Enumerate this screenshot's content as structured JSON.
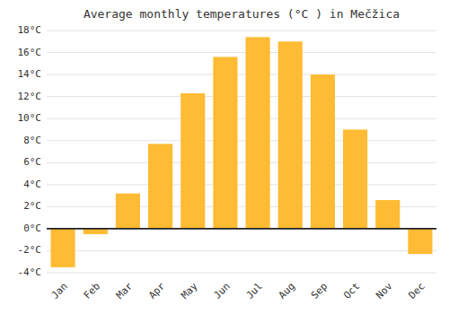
{
  "chart_data": {
    "type": "bar",
    "title": "Average monthly temperatures (°C ) in Mečžica",
    "categories": [
      "Jan",
      "Feb",
      "Mar",
      "Apr",
      "May",
      "Jun",
      "Jul",
      "Aug",
      "Sep",
      "Oct",
      "Nov",
      "Dec"
    ],
    "values": [
      -3.5,
      -0.5,
      3.2,
      7.7,
      12.3,
      15.6,
      17.4,
      17.0,
      14.0,
      9.0,
      2.6,
      -2.3
    ],
    "color": "#FFBB33",
    "ylim": [
      -4,
      18
    ],
    "yticks": [
      {
        "value": -4,
        "label": "-4°C"
      },
      {
        "value": -2,
        "label": "-2°C"
      },
      {
        "value": 0,
        "label": "0°C"
      },
      {
        "value": 2,
        "label": "2°C"
      },
      {
        "value": 4,
        "label": "4°C"
      },
      {
        "value": 6,
        "label": "6°C"
      },
      {
        "value": 8,
        "label": "8°C"
      },
      {
        "value": 10,
        "label": "10°C"
      },
      {
        "value": 12,
        "label": "12°C"
      },
      {
        "value": 14,
        "label": "14°C"
      },
      {
        "value": 16,
        "label": "16°C"
      },
      {
        "value": 18,
        "label": "18°C"
      }
    ],
    "grid": true
  }
}
